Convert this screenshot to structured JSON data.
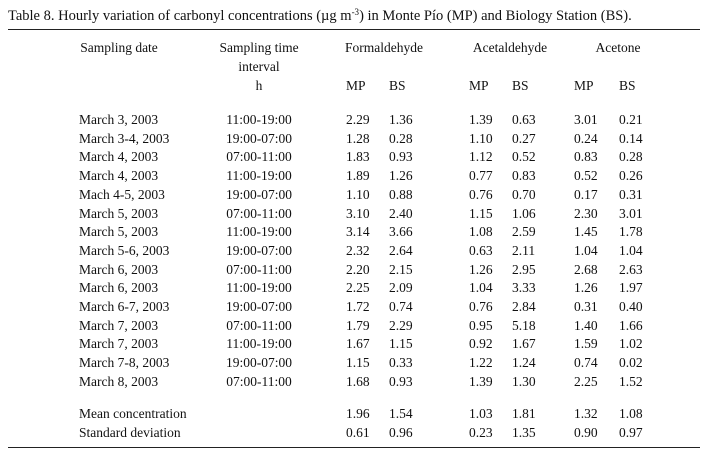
{
  "caption": {
    "prefix": "Table 8. Hourly variation of carbonyl concentrations (",
    "mu": "µ",
    "unit_g": "g m",
    "exp": "-3",
    "suffix": ") in Monte Pío (MP) and Biology Station (BS)."
  },
  "headers": {
    "date": "Sampling date",
    "time_line1": "Sampling time",
    "time_line2": "interval",
    "time_line3": "h",
    "formaldehyde": "Formaldehyde",
    "acetaldehyde": "Acetaldehyde",
    "acetone": "Acetone",
    "mp": "MP",
    "bs": "BS"
  },
  "rows": [
    {
      "date": "March 3, 2003",
      "time": "11:00-19:00",
      "f_mp": "2.29",
      "f_bs": "1.36",
      "a_mp": "1.39",
      "a_bs": "0.63",
      "k_mp": "3.01",
      "k_bs": "0.21"
    },
    {
      "date": "March 3-4, 2003",
      "time": "19:00-07:00",
      "f_mp": "1.28",
      "f_bs": "0.28",
      "a_mp": "1.10",
      "a_bs": "0.27",
      "k_mp": "0.24",
      "k_bs": "0.14"
    },
    {
      "date": "March 4, 2003",
      "time": "07:00-11:00",
      "f_mp": "1.83",
      "f_bs": "0.93",
      "a_mp": "1.12",
      "a_bs": "0.52",
      "k_mp": "0.83",
      "k_bs": "0.28"
    },
    {
      "date": "March 4, 2003",
      "time": "11:00-19:00",
      "f_mp": "1.89",
      "f_bs": "1.26",
      "a_mp": "0.77",
      "a_bs": "0.83",
      "k_mp": "0.52",
      "k_bs": "0.26"
    },
    {
      "date": "Mach 4-5, 2003",
      "time": "19:00-07:00",
      "f_mp": "1.10",
      "f_bs": "0.88",
      "a_mp": "0.76",
      "a_bs": "0.70",
      "k_mp": "0.17",
      "k_bs": "0.31"
    },
    {
      "date": "March 5, 2003",
      "time": "07:00-11:00",
      "f_mp": "3.10",
      "f_bs": "2.40",
      "a_mp": "1.15",
      "a_bs": "1.06",
      "k_mp": "2.30",
      "k_bs": "3.01"
    },
    {
      "date": "March 5, 2003",
      "time": "11:00-19:00",
      "f_mp": "3.14",
      "f_bs": "3.66",
      "a_mp": "1.08",
      "a_bs": "2.59",
      "k_mp": "1.45",
      "k_bs": "1.78"
    },
    {
      "date": "March 5-6, 2003",
      "time": "19:00-07:00",
      "f_mp": "2.32",
      "f_bs": "2.64",
      "a_mp": "0.63",
      "a_bs": "2.11",
      "k_mp": "1.04",
      "k_bs": "1.04"
    },
    {
      "date": "March 6, 2003",
      "time": "07:00-11:00",
      "f_mp": "2.20",
      "f_bs": "2.15",
      "a_mp": "1.26",
      "a_bs": "2.95",
      "k_mp": "2.68",
      "k_bs": "2.63"
    },
    {
      "date": "March 6, 2003",
      "time": "11:00-19:00",
      "f_mp": "2.25",
      "f_bs": "2.09",
      "a_mp": "1.04",
      "a_bs": "3.33",
      "k_mp": "1.26",
      "k_bs": "1.97"
    },
    {
      "date": "March 6-7, 2003",
      "time": "19:00-07:00",
      "f_mp": "1.72",
      "f_bs": "0.74",
      "a_mp": "0.76",
      "a_bs": "2.84",
      "k_mp": "0.31",
      "k_bs": "0.40"
    },
    {
      "date": "March 7, 2003",
      "time": "07:00-11:00",
      "f_mp": "1.79",
      "f_bs": "2.29",
      "a_mp": "0.95",
      "a_bs": "5.18",
      "k_mp": "1.40",
      "k_bs": "1.66"
    },
    {
      "date": "March 7, 2003",
      "time": "11:00-19:00",
      "f_mp": "1.67",
      "f_bs": "1.15",
      "a_mp": "0.92",
      "a_bs": "1.67",
      "k_mp": "1.59",
      "k_bs": "1.02"
    },
    {
      "date": "March 7-8, 2003",
      "time": "19:00-07:00",
      "f_mp": "1.15",
      "f_bs": "0.33",
      "a_mp": "1.22",
      "a_bs": "1.24",
      "k_mp": "0.74",
      "k_bs": "0.02"
    },
    {
      "date": "March 8, 2003",
      "time": "07:00-11:00",
      "f_mp": "1.68",
      "f_bs": "0.93",
      "a_mp": "1.39",
      "a_bs": "1.30",
      "k_mp": "2.25",
      "k_bs": "1.52"
    }
  ],
  "summary": [
    {
      "label": "Mean concentration",
      "f_mp": "1.96",
      "f_bs": "1.54",
      "a_mp": "1.03",
      "a_bs": "1.81",
      "k_mp": "1.32",
      "k_bs": "1.08"
    },
    {
      "label": "Standard deviation",
      "f_mp": "0.61",
      "f_bs": "0.96",
      "a_mp": "0.23",
      "a_bs": "1.35",
      "k_mp": "0.90",
      "k_bs": "0.97"
    }
  ]
}
